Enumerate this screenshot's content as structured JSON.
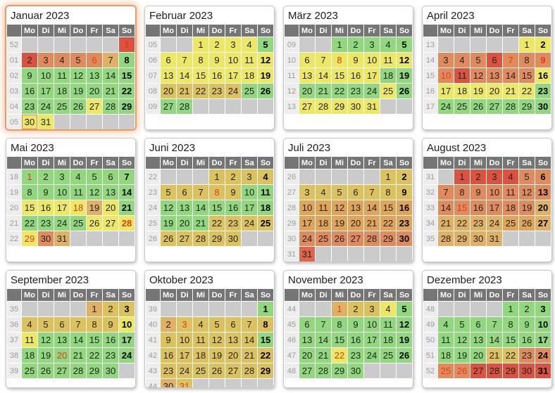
{
  "weekday_headers": [
    "Mo",
    "Di",
    "Mi",
    "Do",
    "Fr",
    "Sa",
    "So"
  ],
  "day_format_note": "day:colorKey[:flags] flags h=holiday-red-text t=today-marker, empty string = blank cell, Sunday column auto-bold",
  "palette": {
    "g": "#90d77e",
    "y": "#ece866",
    "d": "#dcc25e",
    "a": "#e0b066",
    "o": "#e0a458",
    "s": "#e08b5e",
    "r": "#da5340",
    "rl": "#e0654c"
  },
  "ui_colors": {
    "header_bg": "#757575",
    "header_text": "#ffffff",
    "weeknum_bg": "#ededed",
    "weeknum_text": "#9a9a9a",
    "empty_cell": "#cbcbcb",
    "day_text": "#222222",
    "holiday_text": "#e23a17",
    "today_border": "#e87c66",
    "highlight_card_border": "#e9996b",
    "card_border": "#c8c8c8"
  },
  "months": [
    {
      "name": "Januar 2023",
      "highlight": true,
      "weeks": [
        {
          "num": "52",
          "days": [
            "",
            "",
            "",
            "",
            "",
            "",
            "1:r:h"
          ]
        },
        {
          "num": "01",
          "days": [
            "2:r",
            "3:s",
            "4:s",
            "5:s",
            "6:s:h",
            "7:a",
            "8:g"
          ]
        },
        {
          "num": "02",
          "days": [
            "9:g",
            "10:g",
            "11:g",
            "12:g",
            "13:g",
            "14:g",
            "15:g"
          ]
        },
        {
          "num": "03",
          "days": [
            "16:g",
            "17:g",
            "18:g",
            "19:g",
            "20:g",
            "21:g",
            "22:g"
          ]
        },
        {
          "num": "04",
          "days": [
            "23:g",
            "24:g",
            "25:g",
            "26:g",
            "27:y",
            "28:g",
            "29:g"
          ]
        },
        {
          "num": "05",
          "days": [
            "30:y:t",
            "31:y",
            "",
            "",
            "",
            "",
            ""
          ]
        }
      ]
    },
    {
      "name": "Februar 2023",
      "highlight": false,
      "weeks": [
        {
          "num": "05",
          "days": [
            "",
            "",
            "1:y",
            "2:y",
            "3:y",
            "4:y",
            "5:g"
          ]
        },
        {
          "num": "06",
          "days": [
            "6:y",
            "7:y",
            "8:y",
            "9:y",
            "10:y",
            "11:y",
            "12:y"
          ]
        },
        {
          "num": "07",
          "days": [
            "13:y",
            "14:y",
            "15:y",
            "16:y",
            "17:y",
            "18:y",
            "19:y"
          ]
        },
        {
          "num": "08",
          "days": [
            "20:d",
            "21:d",
            "22:d",
            "23:d",
            "24:d",
            "25:g",
            "26:g"
          ]
        },
        {
          "num": "09",
          "days": [
            "27:g",
            "28:g",
            "",
            "",
            "",
            "",
            ""
          ]
        }
      ]
    },
    {
      "name": "März 2023",
      "highlight": false,
      "weeks": [
        {
          "num": "09",
          "days": [
            "",
            "",
            "1:g",
            "2:g",
            "3:g",
            "4:g",
            "5:g"
          ]
        },
        {
          "num": "10",
          "days": [
            "6:y",
            "7:y",
            "8:y:h",
            "9:y",
            "10:y",
            "11:y",
            "12:y"
          ]
        },
        {
          "num": "11",
          "days": [
            "13:y",
            "14:y",
            "15:y",
            "16:y",
            "17:y",
            "18:g",
            "19:g"
          ]
        },
        {
          "num": "12",
          "days": [
            "20:g",
            "21:g",
            "22:g",
            "23:g",
            "24:g",
            "25:y",
            "26:g"
          ]
        },
        {
          "num": "13",
          "days": [
            "27:y",
            "28:y",
            "29:y",
            "30:y",
            "31:y",
            "",
            ""
          ]
        }
      ]
    },
    {
      "name": "April 2023",
      "highlight": false,
      "weeks": [
        {
          "num": "13",
          "days": [
            "",
            "",
            "",
            "",
            "",
            "1:y",
            "2:y"
          ]
        },
        {
          "num": "14",
          "days": [
            "3:s",
            "4:s",
            "5:s",
            "6:r",
            "7:s:h",
            "8:s",
            "9:s:h"
          ]
        },
        {
          "num": "15",
          "days": [
            "10:s:h",
            "11:r",
            "12:s",
            "13:s",
            "14:s",
            "15:s",
            "16:y"
          ]
        },
        {
          "num": "16",
          "days": [
            "17:y",
            "18:y",
            "19:y",
            "20:y",
            "21:y",
            "22:y",
            "23:g"
          ]
        },
        {
          "num": "17",
          "days": [
            "24:g",
            "25:g",
            "26:g",
            "27:g",
            "28:g",
            "29:g",
            "30:g"
          ]
        }
      ]
    },
    {
      "name": "Mai 2023",
      "highlight": false,
      "weeks": [
        {
          "num": "18",
          "days": [
            "1:g:h",
            "2:g",
            "3:g",
            "4:g",
            "5:g",
            "6:g",
            "7:g"
          ]
        },
        {
          "num": "19",
          "days": [
            "8:g",
            "9:g",
            "10:g",
            "11:g",
            "12:g",
            "13:g",
            "14:g"
          ]
        },
        {
          "num": "20",
          "days": [
            "15:y",
            "16:y",
            "17:y",
            "18:y:h",
            "19:a",
            "20:y",
            "21:g"
          ]
        },
        {
          "num": "21",
          "days": [
            "22:g",
            "23:g",
            "24:g",
            "25:g",
            "26:y",
            "27:y",
            "28:y:h"
          ]
        },
        {
          "num": "22",
          "days": [
            "29:y:h",
            "30:s",
            "31:a",
            "",
            "",
            "",
            ""
          ]
        }
      ]
    },
    {
      "name": "Juni 2023",
      "highlight": false,
      "weeks": [
        {
          "num": "22",
          "days": [
            "",
            "",
            "",
            "1:d",
            "2:d",
            "3:d",
            "4:d"
          ]
        },
        {
          "num": "23",
          "days": [
            "5:d",
            "6:d",
            "7:d",
            "8:d:h",
            "9:d",
            "10:g",
            "11:g"
          ]
        },
        {
          "num": "24",
          "days": [
            "12:g",
            "13:g",
            "14:g",
            "15:g",
            "16:g",
            "17:g",
            "18:g"
          ]
        },
        {
          "num": "25",
          "days": [
            "19:g",
            "20:g",
            "21:g",
            "22:d",
            "23:d",
            "24:d",
            "25:d"
          ]
        },
        {
          "num": "26",
          "days": [
            "26:d",
            "27:d",
            "28:d",
            "29:d",
            "30:d",
            "",
            ""
          ]
        }
      ]
    },
    {
      "name": "Juli 2023",
      "highlight": false,
      "weeks": [
        {
          "num": "26",
          "days": [
            "",
            "",
            "",
            "",
            "",
            "1:d",
            "2:d"
          ]
        },
        {
          "num": "27",
          "days": [
            "3:d",
            "4:d",
            "5:d",
            "6:d",
            "7:d",
            "8:d",
            "9:d"
          ]
        },
        {
          "num": "28",
          "days": [
            "10:o",
            "11:o",
            "12:o",
            "13:o",
            "14:o",
            "15:o",
            "16:o"
          ]
        },
        {
          "num": "29",
          "days": [
            "17:o",
            "18:o",
            "19:o",
            "20:o",
            "21:o",
            "22:o",
            "23:o"
          ]
        },
        {
          "num": "30",
          "days": [
            "24:s",
            "25:s",
            "26:s",
            "27:s",
            "28:s",
            "29:s",
            "30:s"
          ]
        },
        {
          "num": "31",
          "days": [
            "31:rl",
            "",
            "",
            "",
            "",
            "",
            ""
          ]
        }
      ]
    },
    {
      "name": "August 2023",
      "highlight": false,
      "weeks": [
        {
          "num": "31",
          "days": [
            "",
            "1:r",
            "2:r",
            "3:r",
            "4:r",
            "5:s",
            "6:s"
          ]
        },
        {
          "num": "32",
          "days": [
            "7:s",
            "8:s",
            "9:s",
            "10:s",
            "11:s",
            "12:s",
            "13:s"
          ]
        },
        {
          "num": "33",
          "days": [
            "14:s",
            "15:s:h",
            "16:s",
            "17:s",
            "18:s",
            "19:s",
            "20:a"
          ]
        },
        {
          "num": "34",
          "days": [
            "21:a",
            "22:a",
            "23:a",
            "24:a",
            "25:o",
            "26:o",
            "27:a"
          ]
        },
        {
          "num": "35",
          "days": [
            "28:a",
            "29:a",
            "30:a",
            "31:a",
            "",
            "",
            ""
          ]
        }
      ]
    },
    {
      "name": "September 2023",
      "highlight": false,
      "weeks": [
        {
          "num": "35",
          "days": [
            "",
            "",
            "",
            "",
            "1:a",
            "2:d",
            "3:d"
          ]
        },
        {
          "num": "36",
          "days": [
            "4:d",
            "5:d",
            "6:d",
            "7:d",
            "8:d",
            "9:d",
            "10:y"
          ]
        },
        {
          "num": "37",
          "days": [
            "11:y",
            "12:g",
            "13:g",
            "14:g",
            "15:g",
            "16:g",
            "17:g"
          ]
        },
        {
          "num": "38",
          "days": [
            "18:g",
            "19:g",
            "20:g:h",
            "21:g",
            "22:g",
            "23:g",
            "24:g"
          ]
        },
        {
          "num": "39",
          "days": [
            "25:g",
            "26:g",
            "27:g",
            "28:g",
            "29:g",
            "30:g",
            ""
          ]
        }
      ]
    },
    {
      "name": "Oktober 2023",
      "highlight": false,
      "weeks": [
        {
          "num": "39",
          "days": [
            "",
            "",
            "",
            "",
            "",
            "",
            "1:g"
          ]
        },
        {
          "num": "40",
          "days": [
            "2:a",
            "3:d:h",
            "4:d",
            "5:d",
            "6:d",
            "7:d",
            "8:d"
          ]
        },
        {
          "num": "41",
          "days": [
            "9:d",
            "10:d",
            "11:d",
            "12:d",
            "13:d",
            "14:d",
            "15:g"
          ]
        },
        {
          "num": "42",
          "days": [
            "16:d",
            "17:d",
            "18:d",
            "19:d",
            "20:d",
            "21:d",
            "22:d"
          ]
        },
        {
          "num": "43",
          "days": [
            "23:d",
            "24:d",
            "25:d",
            "26:d",
            "27:d",
            "28:d",
            "29:d"
          ]
        },
        {
          "num": "44",
          "days": [
            "30:a",
            "31:d:h",
            "",
            "",
            "",
            "",
            ""
          ]
        }
      ]
    },
    {
      "name": "November 2023",
      "highlight": false,
      "weeks": [
        {
          "num": "44",
          "days": [
            "",
            "",
            "1:a:h",
            "2:d",
            "3:d",
            "4:y",
            "5:g"
          ]
        },
        {
          "num": "45",
          "days": [
            "6:g",
            "7:g",
            "8:g",
            "9:g",
            "10:g",
            "11:g",
            "12:g"
          ]
        },
        {
          "num": "46",
          "days": [
            "13:g",
            "14:g",
            "15:g",
            "16:g",
            "17:g",
            "18:g",
            "19:g"
          ]
        },
        {
          "num": "47",
          "days": [
            "20:g",
            "21:g",
            "22:y:h",
            "23:g",
            "24:g",
            "25:g",
            "26:g"
          ]
        },
        {
          "num": "48",
          "days": [
            "27:g",
            "28:g",
            "29:g",
            "30:g",
            "",
            "",
            ""
          ]
        }
      ]
    },
    {
      "name": "Dezember 2023",
      "highlight": false,
      "weeks": [
        {
          "num": "48",
          "days": [
            "",
            "",
            "",
            "",
            "1:g",
            "2:g",
            "3:g"
          ]
        },
        {
          "num": "49",
          "days": [
            "4:g",
            "5:g",
            "6:g",
            "7:g",
            "8:g",
            "9:g",
            "10:g"
          ]
        },
        {
          "num": "50",
          "days": [
            "11:g",
            "12:g",
            "13:g",
            "14:g",
            "15:g",
            "16:g",
            "17:g"
          ]
        },
        {
          "num": "51",
          "days": [
            "18:g",
            "19:g",
            "20:g",
            "21:d",
            "22:d",
            "23:s",
            "24:s"
          ]
        },
        {
          "num": "52",
          "days": [
            "25:s:h",
            "26:s:h",
            "27:r",
            "28:r",
            "29:r",
            "30:r",
            "31:r"
          ]
        }
      ]
    }
  ]
}
